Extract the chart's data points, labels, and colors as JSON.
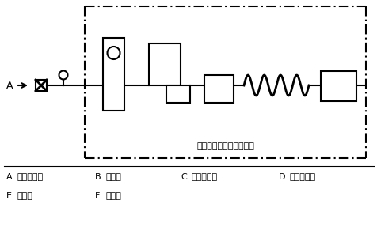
{
  "bg_color": "#ffffff",
  "line_color": "#000000",
  "fig_width": 4.77,
  "fig_height": 2.86,
  "dpi": 100,
  "desc_A": "窒素ボンベ",
  "desc_B": "流量計",
  "desc_C": "流量調整弁",
  "desc_D": "試料導入部",
  "desc_E": "カラム",
  "desc_F": "検出器",
  "inner_box_label": "ガスクロマトグラフ本体",
  "font_size_legend": 8,
  "font_size_inner": 8,
  "font_size_label": 9
}
